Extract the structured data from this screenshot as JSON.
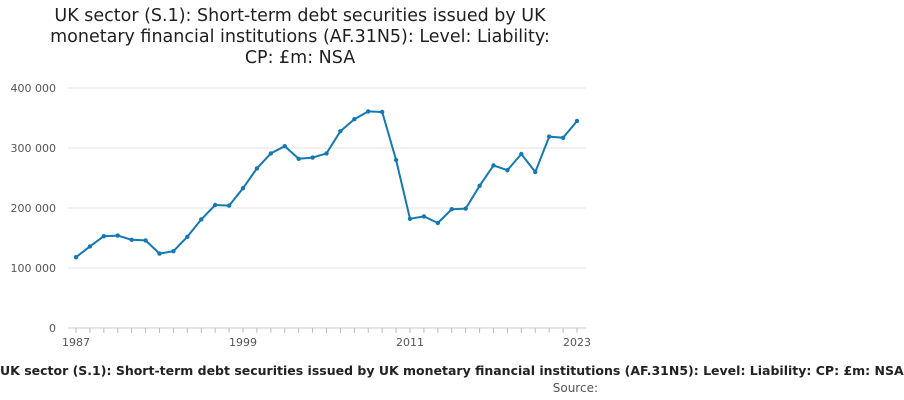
{
  "chart_data": {
    "type": "line",
    "title_lines": [
      "UK sector (S.1): Short-term debt securities issued by UK",
      "monetary financial institutions (AF.31N5): Level: Liability:",
      "CP: £m: NSA"
    ],
    "xlabel": "",
    "ylabel": "",
    "ylim": [
      0,
      400000
    ],
    "xlim": [
      1987,
      2023
    ],
    "yticks": [
      0,
      100000,
      200000,
      300000,
      400000
    ],
    "ytick_labels": [
      "0",
      "100 000",
      "200 000",
      "300 000",
      "400 000"
    ],
    "xticks": [
      1987,
      1999,
      2011,
      2023
    ],
    "xtick_labels": [
      "1987",
      "1999",
      "2011",
      "2023"
    ],
    "grid": true,
    "color": "#1478b4",
    "x": [
      1987,
      1988,
      1989,
      1990,
      1991,
      1992,
      1993,
      1994,
      1995,
      1996,
      1997,
      1998,
      1999,
      2000,
      2001,
      2002,
      2003,
      2004,
      2005,
      2006,
      2007,
      2008,
      2009,
      2010,
      2011,
      2012,
      2013,
      2014,
      2015,
      2016,
      2017,
      2018,
      2019,
      2020,
      2021,
      2022,
      2023
    ],
    "values": [
      118000,
      136000,
      153000,
      154000,
      147000,
      146000,
      124000,
      128000,
      152000,
      181000,
      205000,
      204000,
      233000,
      266000,
      291000,
      303000,
      282000,
      284000,
      291000,
      328000,
      348000,
      361000,
      360000,
      280000,
      182000,
      186000,
      175000,
      198000,
      199000,
      237000,
      271000,
      263000,
      290000,
      260000,
      319000,
      317000,
      345000
    ]
  },
  "footer": {
    "series_label": "UK sector (S.1): Short-term debt securities issued by UK monetary financial institutions (AF.31N5): Level: Liability: CP: £m: NSA",
    "source_label": "Source:"
  }
}
